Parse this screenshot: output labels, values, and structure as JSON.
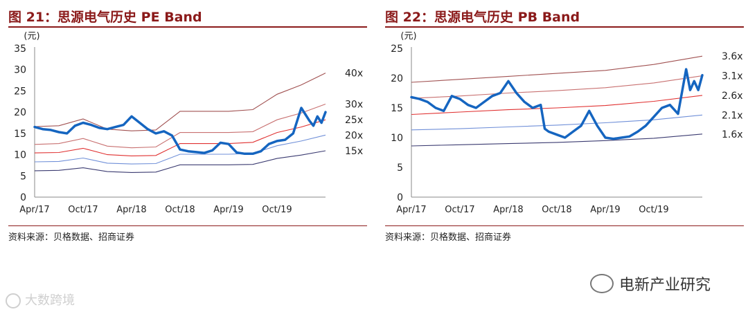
{
  "charts": [
    {
      "title": "图 21：思源电气历史 PE Band",
      "unit": "(元)",
      "source": "资料来源：贝格数据、招商证券"
    },
    {
      "title": "图 22：思源电气历史 PB Band",
      "unit": "(元)",
      "source": "资料来源：贝格数据、招商证券"
    }
  ],
  "watermarks": {
    "left": "大数跨境",
    "right": "电新产业研究"
  },
  "chart_data": [
    {
      "type": "line",
      "title": "图 21：思源电气历史 PE Band",
      "ylabel": "(元)",
      "ylim": [
        0,
        35
      ],
      "yticks": [
        0,
        5,
        10,
        15,
        20,
        25,
        30,
        35
      ],
      "x_tick_labels": [
        "Apr/17",
        "Oct/17",
        "Apr/18",
        "Oct/18",
        "Apr/19",
        "Oct/19"
      ],
      "x_tick_positions": [
        0,
        6,
        12,
        18,
        24,
        30
      ],
      "xlim": [
        0,
        36
      ],
      "grid": false,
      "band_x": [
        0,
        3,
        6,
        9,
        12,
        15,
        18,
        21,
        24,
        27,
        30,
        33,
        36
      ],
      "bands": [
        {
          "name": "40x",
          "color": "#a05050",
          "values": [
            16.6,
            16.8,
            18.4,
            16.0,
            15.6,
            15.8,
            20.2,
            20.2,
            20.2,
            20.6,
            24.2,
            26.4,
            29.2
          ]
        },
        {
          "name": "30x",
          "color": "#c87070",
          "values": [
            12.4,
            12.6,
            13.8,
            12.0,
            11.6,
            11.8,
            15.2,
            15.2,
            15.2,
            15.4,
            18.2,
            19.8,
            21.9
          ]
        },
        {
          "name": "25x",
          "color": "#e03030",
          "values": [
            10.4,
            10.5,
            11.5,
            10.0,
            9.7,
            9.8,
            12.6,
            12.6,
            12.6,
            12.9,
            15.2,
            16.5,
            18.2
          ]
        },
        {
          "name": "20x",
          "color": "#6f8fd8",
          "values": [
            8.3,
            8.4,
            9.2,
            8.0,
            7.8,
            7.9,
            10.1,
            10.1,
            10.1,
            10.3,
            12.1,
            13.2,
            14.6
          ]
        },
        {
          "name": "15x",
          "color": "#3a3a70",
          "values": [
            6.2,
            6.3,
            6.9,
            6.0,
            5.8,
            5.9,
            7.6,
            7.6,
            7.6,
            7.7,
            9.1,
            9.9,
            10.9
          ]
        }
      ],
      "price": {
        "name": "price",
        "color": "#1565c0",
        "x": [
          0,
          1,
          2,
          3,
          4,
          5,
          6,
          7,
          8,
          9,
          10,
          11,
          12,
          13,
          14,
          15,
          16,
          17,
          18,
          19,
          20,
          21,
          22,
          23,
          24,
          25,
          26,
          27,
          28,
          29,
          30,
          31,
          32,
          33,
          34,
          34.5,
          35,
          35.5,
          36
        ],
        "y": [
          16.5,
          16.0,
          15.8,
          15.3,
          15.0,
          16.8,
          17.5,
          17.0,
          16.3,
          16.0,
          16.5,
          17.0,
          19.0,
          17.5,
          16.0,
          15.0,
          15.5,
          14.5,
          11.2,
          10.8,
          10.6,
          10.4,
          11.0,
          12.8,
          12.5,
          10.5,
          10.2,
          10.2,
          10.8,
          12.5,
          13.2,
          13.5,
          15.0,
          21.0,
          18.0,
          16.8,
          19.0,
          17.5,
          20.0
        ]
      }
    },
    {
      "type": "line",
      "title": "图 22：思源电气历史 PB Band",
      "ylabel": "(元)",
      "ylim": [
        0,
        25
      ],
      "yticks": [
        0,
        5,
        10,
        15,
        20,
        25
      ],
      "x_tick_labels": [
        "Apr/17",
        "Oct/17",
        "Apr/18",
        "Oct/18",
        "Apr/19",
        "Oct/19"
      ],
      "x_tick_positions": [
        0,
        6,
        12,
        18,
        24,
        30
      ],
      "xlim": [
        0,
        36
      ],
      "grid": false,
      "band_x": [
        0,
        6,
        12,
        18,
        24,
        30,
        36
      ],
      "bands": [
        {
          "name": "3.6x",
          "color": "#a05050",
          "values": [
            19.3,
            19.8,
            20.3,
            20.8,
            21.3,
            22.3,
            23.7
          ]
        },
        {
          "name": "3.1x",
          "color": "#c87070",
          "values": [
            16.6,
            17.0,
            17.5,
            17.9,
            18.4,
            19.2,
            20.4
          ]
        },
        {
          "name": "2.6x",
          "color": "#e03030",
          "values": [
            13.9,
            14.3,
            14.7,
            15.0,
            15.4,
            16.1,
            17.1
          ]
        },
        {
          "name": "2.1x",
          "color": "#6f8fd8",
          "values": [
            11.3,
            11.5,
            11.8,
            12.1,
            12.5,
            13.0,
            13.8
          ]
        },
        {
          "name": "1.6x",
          "color": "#3a3a70",
          "values": [
            8.6,
            8.8,
            9.0,
            9.2,
            9.5,
            9.9,
            10.6
          ]
        }
      ],
      "price": {
        "name": "price",
        "color": "#1565c0",
        "x": [
          0,
          1,
          2,
          3,
          4,
          5,
          6,
          7,
          8,
          9,
          10,
          11,
          12,
          13,
          14,
          15,
          16,
          16.5,
          17,
          18,
          19,
          20,
          21,
          22,
          23,
          24,
          25,
          26,
          27,
          28,
          29,
          30,
          31,
          32,
          33,
          34,
          34.5,
          35,
          35.5,
          36
        ],
        "y": [
          16.8,
          16.5,
          16.0,
          15.0,
          14.5,
          17.0,
          16.5,
          15.5,
          15.0,
          16.0,
          17.0,
          17.5,
          19.5,
          17.5,
          16.0,
          15.0,
          15.5,
          11.5,
          11.0,
          10.5,
          10.0,
          11.0,
          12.0,
          14.5,
          12.0,
          10.0,
          9.8,
          10.0,
          10.2,
          11.0,
          12.0,
          13.5,
          15.0,
          15.5,
          14.0,
          21.5,
          18.0,
          19.5,
          18.0,
          20.5
        ]
      }
    }
  ]
}
